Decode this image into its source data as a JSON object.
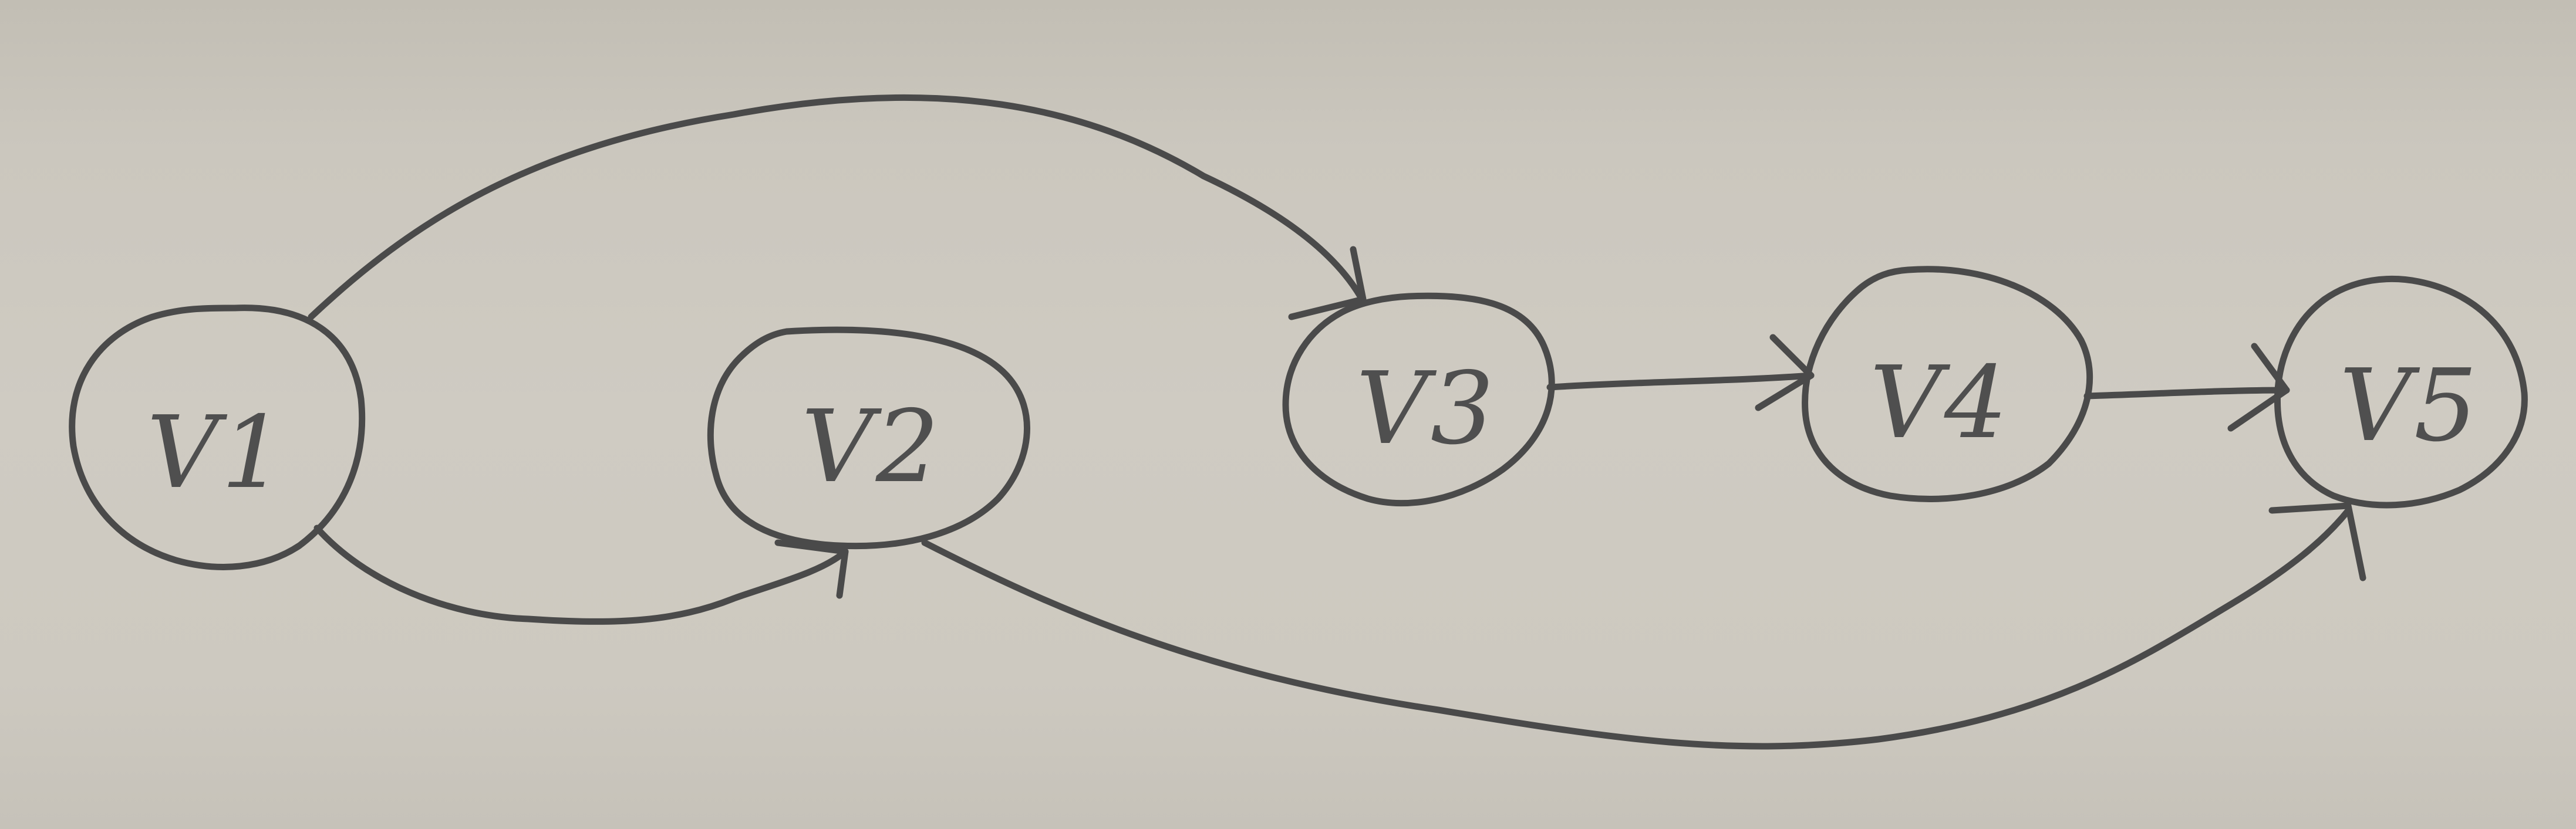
{
  "diagram": {
    "nodes": [
      {
        "id": "v1",
        "label": "V1"
      },
      {
        "id": "v2",
        "label": "V2"
      },
      {
        "id": "v3",
        "label": "V3"
      },
      {
        "id": "v4",
        "label": "V4"
      },
      {
        "id": "v5",
        "label": "V5"
      }
    ],
    "edges": [
      {
        "from": "V1",
        "to": "V3"
      },
      {
        "from": "V1",
        "to": "V2"
      },
      {
        "from": "V2",
        "to": "V5"
      },
      {
        "from": "V3",
        "to": "V4"
      },
      {
        "from": "V4",
        "to": "V5"
      }
    ],
    "colors": {
      "ink": "#4a4a4a",
      "paper": "#cbc7be"
    }
  }
}
